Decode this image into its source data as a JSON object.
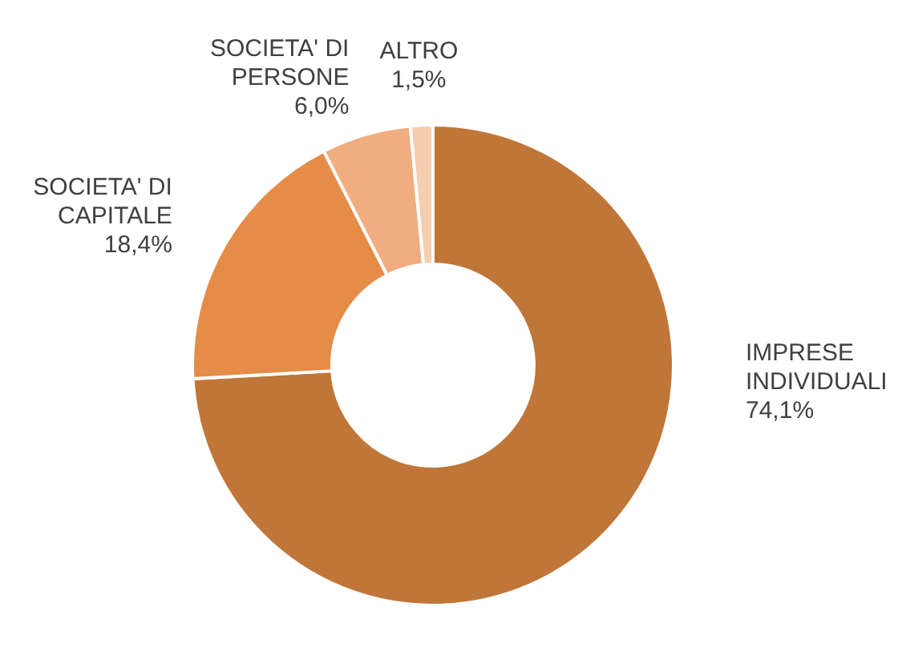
{
  "chart_data": {
    "type": "donut",
    "categories": [
      "IMPRESE INDIVIDUALI",
      "SOCIETA' DI CAPITALE",
      "SOCIETA' DI PERSONE",
      "ALTRO"
    ],
    "values": [
      74.1,
      18.4,
      6.0,
      1.5
    ],
    "colors": [
      "#c07638",
      "#e58c48",
      "#f0ad80",
      "#f7cdb0"
    ],
    "value_labels": [
      "74,1%",
      "18,4%",
      "6,0%",
      "1,5%"
    ]
  }
}
